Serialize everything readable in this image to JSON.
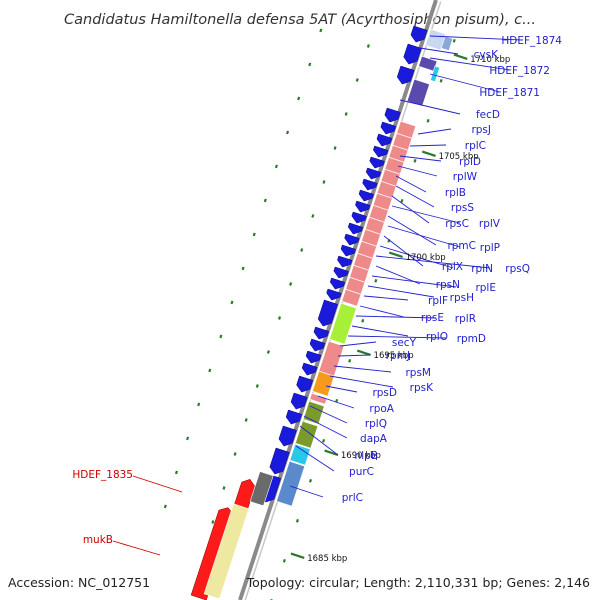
{
  "title": "Candidatus Hamiltonella defensa 5AT (Acyrthosiphon pisum), c...",
  "accession": "Accession: NC_012751",
  "topology": "Topology: circular; Length: 2,110,331 bp; Genes: 2,146",
  "colors": {
    "backbone": "#8a8a8a",
    "tick": "#2a7a2a",
    "gene_blue": "#1a1adb",
    "label_blue": "#2222cc",
    "label_red": "#cc0000",
    "cog_pink": "#ef8a8a",
    "cog_lime": "#a8ef3a",
    "cog_orange": "#f59a1a",
    "cog_olive": "#7a9a2a",
    "cog_steel": "#5a8acb",
    "cog_cyan": "#2ac8e8",
    "cog_violet": "#5a4aab",
    "cog_lightblue": "#c8d8ef",
    "gene_red": "#ff1a1a",
    "cog_yellow": "#efe8a0",
    "cog_gray": "#6a6a6a"
  },
  "scale_labels": [
    "1710 kbp",
    "1705 kbp",
    "1700 kbp",
    "1695 kbp",
    "1690 kbp",
    "1685 kbp"
  ],
  "gene_labels": [
    "HDEF_1874",
    "cysK",
    "HDEF_1872",
    "HDEF_1871",
    "fecD",
    "rpsJ",
    "rplC",
    "rplD",
    "rplW",
    "rplB",
    "rpsS",
    "rpsC",
    "rplV",
    "rpmC",
    "rplP",
    "rplX",
    "rplN",
    "rpsQ",
    "rpsN",
    "rplE",
    "rpsH",
    "rplF",
    "rpsE",
    "rplR",
    "rplO",
    "rpmD",
    "secY",
    "rpmJ",
    "rpsM",
    "rpsK",
    "rpsD",
    "rpoA",
    "rplQ",
    "dapA",
    "nlpB",
    "purC",
    "prlC"
  ],
  "red_labels": [
    "HDEF_1835",
    "mukB"
  ]
}
